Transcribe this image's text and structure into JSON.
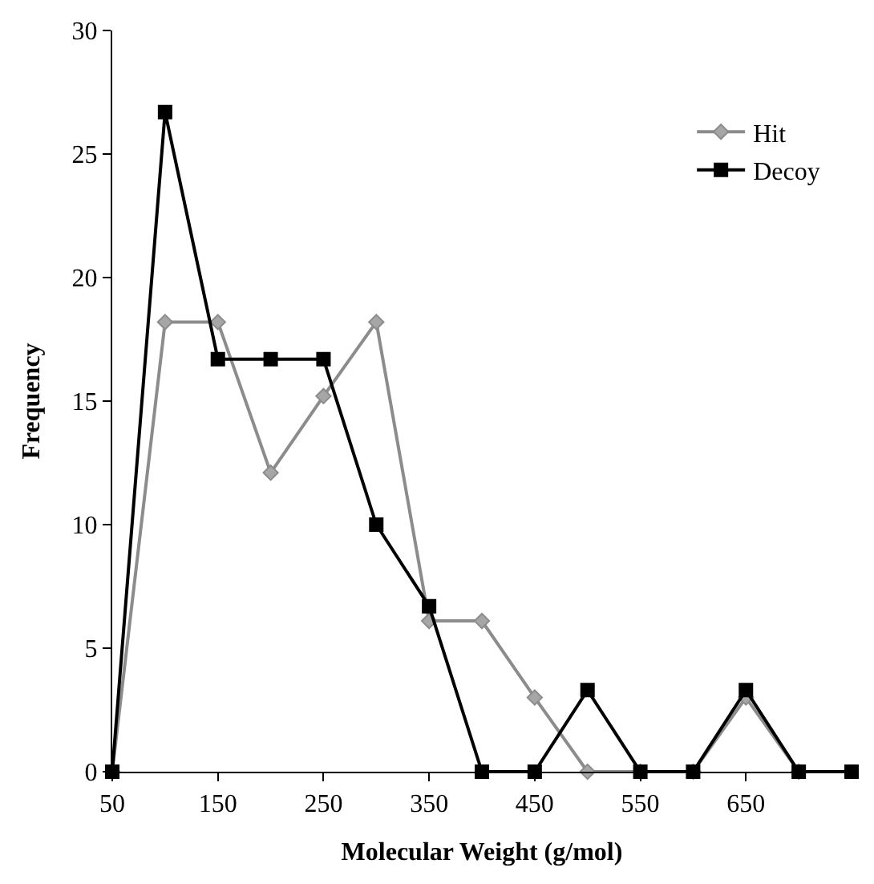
{
  "chart_data": {
    "type": "line",
    "xlabel": "Molecular Weight (g/mol)",
    "ylabel": "Frequency",
    "x": [
      50,
      100,
      150,
      200,
      250,
      300,
      350,
      400,
      450,
      500,
      550,
      600,
      650,
      700,
      750
    ],
    "series": [
      {
        "name": "Hit",
        "color": "#8c8c8c",
        "marker": "diamond",
        "x": [
          50,
          100,
          150,
          200,
          250,
          300,
          350,
          400,
          450,
          500,
          550,
          600,
          650,
          700
        ],
        "values": [
          0,
          18.2,
          18.2,
          12.1,
          15.2,
          18.2,
          6.1,
          6.1,
          3.0,
          0,
          0,
          0,
          3.0,
          0
        ]
      },
      {
        "name": "Decoy",
        "color": "#000000",
        "marker": "square",
        "values": [
          0,
          26.7,
          16.7,
          16.7,
          16.7,
          10,
          6.7,
          0,
          0,
          3.3,
          0,
          0,
          3.3,
          0,
          0
        ]
      }
    ],
    "xlim": [
      50,
      750
    ],
    "xticks": [
      50,
      150,
      250,
      350,
      450,
      550,
      650
    ],
    "ylim": [
      0,
      30
    ],
    "yticks": [
      0,
      5,
      10,
      15,
      20,
      25,
      30
    ],
    "legend": "top right"
  }
}
